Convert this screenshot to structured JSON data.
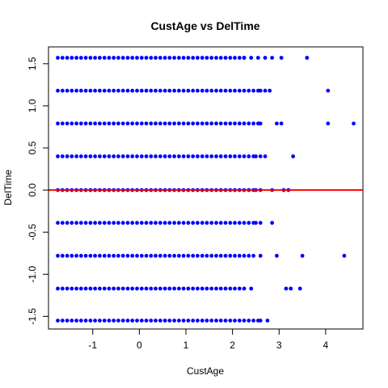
{
  "chart_data": {
    "type": "scatter",
    "title": "CustAge vs DelTime",
    "xlabel": "CustAge",
    "ylabel": "DelTime",
    "xlim": [
      -1.95,
      4.8
    ],
    "ylim": [
      -1.65,
      1.7
    ],
    "x_ticks": [
      -1,
      0,
      1,
      2,
      3,
      4
    ],
    "y_ticks": [
      -1.5,
      -1.0,
      -0.5,
      0.0,
      0.5,
      1.0,
      1.5
    ],
    "x_tick_labels": [
      "-1",
      "0",
      "1",
      "2",
      "3",
      "4"
    ],
    "y_tick_labels": [
      "-1.5",
      "-1.0",
      "-0.5",
      "0.0",
      "0.5",
      "1.0",
      "1.5"
    ],
    "point_color": "#0000ff",
    "reference_line": {
      "y": 0,
      "color": "#ff0000"
    },
    "grid": false,
    "bands": [
      {
        "y": 1.57,
        "x_min": -1.75,
        "x_max": 2.2,
        "step": 0.1,
        "extra_x": [
          2.25,
          2.4,
          2.55,
          2.7,
          2.85,
          3.05,
          3.6
        ]
      },
      {
        "y": 1.18,
        "x_min": -1.75,
        "x_max": 2.5,
        "step": 0.1,
        "extra_x": [
          2.6,
          2.7,
          2.8,
          4.05
        ]
      },
      {
        "y": 0.79,
        "x_min": -1.75,
        "x_max": 2.5,
        "step": 0.1,
        "extra_x": [
          2.6,
          2.95,
          3.05,
          4.05,
          4.6
        ]
      },
      {
        "y": 0.4,
        "x_min": -1.75,
        "x_max": 2.4,
        "step": 0.1,
        "extra_x": [
          2.5,
          2.6,
          2.7,
          3.3
        ]
      },
      {
        "y": 0.0,
        "x_min": -1.75,
        "x_max": 2.4,
        "step": 0.1,
        "extra_x": [
          2.5,
          2.6,
          2.85,
          3.1,
          3.2
        ]
      },
      {
        "y": -0.39,
        "x_min": -1.75,
        "x_max": 2.4,
        "step": 0.1,
        "extra_x": [
          2.5,
          2.6,
          2.85
        ]
      },
      {
        "y": -0.78,
        "x_min": -1.75,
        "x_max": 2.4,
        "step": 0.1,
        "extra_x": [
          2.6,
          2.95,
          3.5,
          4.4
        ]
      },
      {
        "y": -1.17,
        "x_min": -1.75,
        "x_max": 2.3,
        "step": 0.1,
        "extra_x": [
          2.4,
          3.15,
          3.25,
          3.45
        ]
      },
      {
        "y": -1.55,
        "x_min": -1.75,
        "x_max": 2.5,
        "step": 0.1,
        "extra_x": [
          2.6,
          2.75
        ]
      }
    ]
  }
}
